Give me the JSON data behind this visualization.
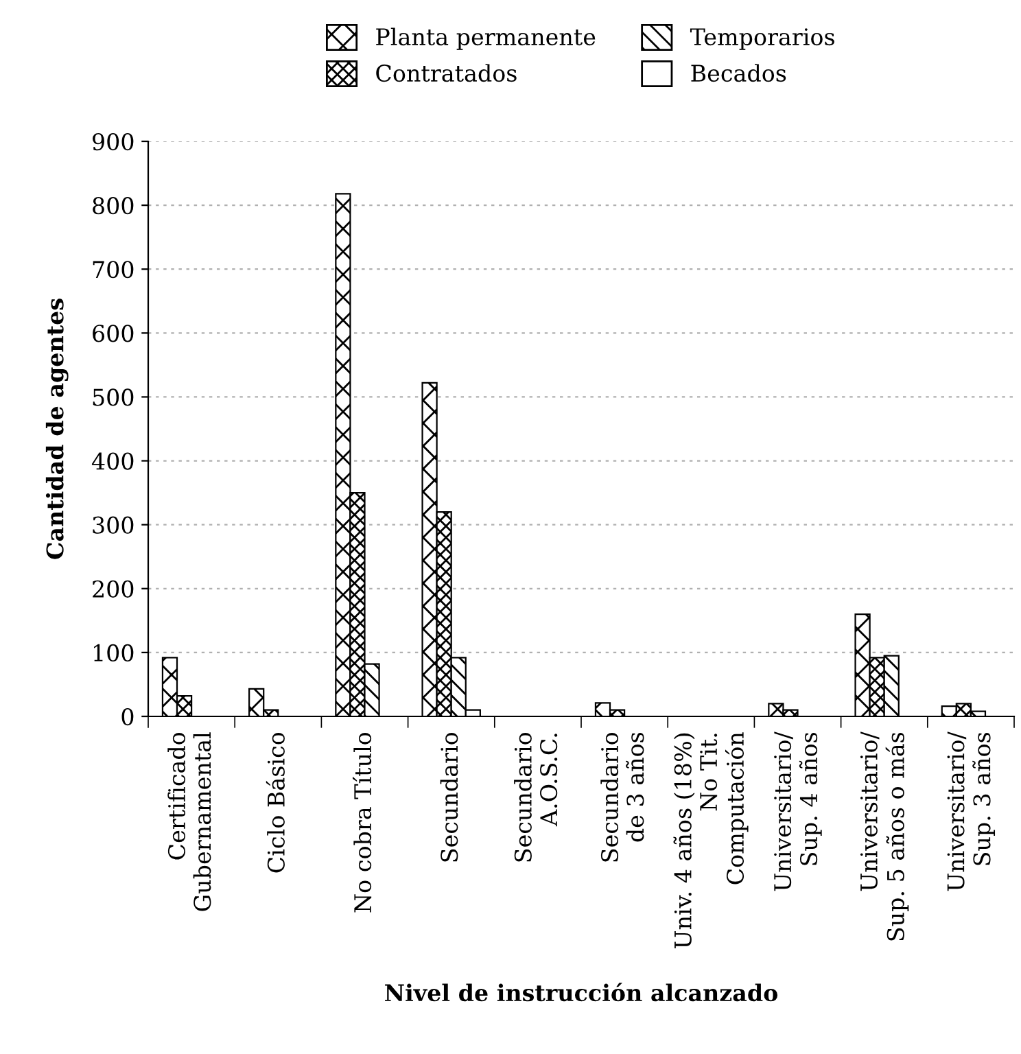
{
  "chart_data": {
    "type": "bar",
    "xlabel": "Nivel de instrucción alcanzado",
    "ylabel": "Cantidad de agentes",
    "categories": [
      "Certificado\nGubernamental",
      "Ciclo Básico",
      "No cobra Título",
      "Secundario",
      "Secundario\nA.O.S.C.",
      "Secundario\nde 3 años",
      "Univ. 4 años (18%)\nNo Tit.\nComputación",
      "Universitario/\nSup. 4 años",
      "Universitario/\nSup. 5 años o más",
      "Universitario/\nSup. 3 años"
    ],
    "series": [
      {
        "name": "Planta permanente",
        "color": "#000000",
        "values": [
          92,
          43,
          818,
          522,
          0,
          21,
          0,
          20,
          160,
          16
        ]
      },
      {
        "name": "Contratados",
        "color": "#000000",
        "values": [
          32,
          10,
          350,
          320,
          0,
          10,
          0,
          10,
          92,
          20
        ]
      },
      {
        "name": "Temporarios",
        "color": "#000000",
        "values": [
          0,
          0,
          82,
          92,
          0,
          0,
          0,
          0,
          95,
          8
        ]
      },
      {
        "name": "Becados",
        "color": "#000000",
        "values": [
          0,
          0,
          0,
          10,
          0,
          0,
          0,
          0,
          0,
          0
        ]
      }
    ],
    "ylim": [
      0,
      900
    ],
    "yticks": [
      0,
      100,
      200,
      300,
      400,
      500,
      600,
      700,
      800,
      900
    ],
    "grid": "y",
    "legend": "top"
  }
}
